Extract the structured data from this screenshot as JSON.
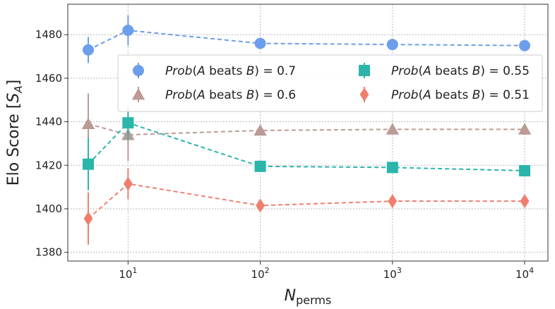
{
  "chart_data": {
    "type": "line",
    "title": "",
    "xlabel": {
      "base": "N",
      "sub": "perms"
    },
    "ylabel": {
      "prefix": "Elo Score [",
      "var": "S",
      "sub": "A",
      "suffix": "]"
    },
    "x_scale": "log",
    "xlim": [
      3.5,
      15000
    ],
    "ylim": [
      1376,
      1494
    ],
    "x_ticks": [
      {
        "value": 10,
        "base": "10",
        "exp": "1"
      },
      {
        "value": 100,
        "base": "10",
        "exp": "2"
      },
      {
        "value": 1000,
        "base": "10",
        "exp": "3"
      },
      {
        "value": 10000,
        "base": "10",
        "exp": "4"
      }
    ],
    "y_ticks": [
      1380,
      1400,
      1420,
      1440,
      1460,
      1480
    ],
    "x": [
      5,
      10,
      100,
      1000,
      10000
    ],
    "grid": true,
    "legend_position": "center-right",
    "series": [
      {
        "label_prefix": "Prob",
        "label_mid": "(",
        "label_a": "A",
        "label_beats": " beats ",
        "label_b": "B",
        "label_suffix": ") = 0.7",
        "color": "#6d9eeb",
        "marker": "circle",
        "values": [
          1473,
          1482,
          1476,
          1475.5,
          1475
        ],
        "err": [
          6,
          7,
          0,
          0,
          0
        ]
      },
      {
        "label_prefix": "Prob",
        "label_mid": "(",
        "label_a": "A",
        "label_beats": " beats ",
        "label_b": "B",
        "label_suffix": ") = 0.6",
        "color": "#bc9a96",
        "marker": "triangle",
        "values": [
          1439,
          1434,
          1436,
          1436.5,
          1436.5
        ],
        "err": [
          14,
          12,
          0,
          0,
          0
        ]
      },
      {
        "label_prefix": "Prob",
        "label_mid": "(",
        "label_a": "A",
        "label_beats": " beats ",
        "label_b": "B",
        "label_suffix": ") = 0.55",
        "color": "#2bb5ab",
        "marker": "square",
        "values": [
          1420.5,
          1439.5,
          1419.5,
          1419,
          1417.5
        ],
        "err": [
          12,
          8,
          0,
          0,
          0
        ]
      },
      {
        "label_prefix": "Prob",
        "label_mid": "(",
        "label_a": "A",
        "label_beats": " beats ",
        "label_b": "B",
        "label_suffix": ") = 0.51",
        "color": "#f07e6e",
        "marker": "diamond",
        "values": [
          1395.5,
          1411.5,
          1401.5,
          1403.5,
          1403.5
        ],
        "err": [
          12,
          7,
          0,
          0,
          0
        ]
      }
    ]
  }
}
